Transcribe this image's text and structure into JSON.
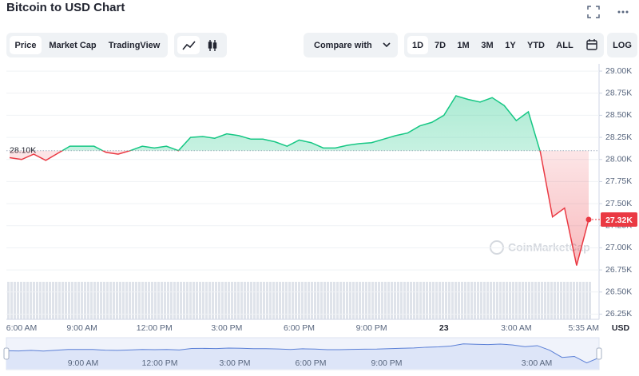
{
  "ui": {
    "tabs": [
      "Price",
      "Market Cap",
      "TradingView"
    ],
    "compare": "Compare with",
    "ranges": [
      "1D",
      "7D",
      "1M",
      "3M",
      "1Y",
      "YTD",
      "ALL"
    ],
    "log": "LOG",
    "currency": "USD",
    "watermark": "CoinMarketCap",
    "navigator_labels": [
      "9:00 AM",
      "12:00 PM",
      "3:00 PM",
      "6:00 PM",
      "9:00 PM",
      "3:00 AM"
    ]
  },
  "chart_data": {
    "type": "line",
    "title": "Bitcoin to USD Chart",
    "categories": [
      "6:00 AM",
      null,
      null,
      null,
      null,
      null,
      "9:00 AM",
      null,
      null,
      null,
      null,
      null,
      "12:00 PM",
      null,
      null,
      null,
      null,
      null,
      "3:00 PM",
      null,
      null,
      null,
      null,
      null,
      "6:00 PM",
      null,
      null,
      null,
      null,
      null,
      "9:00 PM",
      null,
      null,
      null,
      null,
      null,
      "23",
      null,
      null,
      null,
      null,
      null,
      "3:00 AM",
      null,
      null,
      null,
      null,
      null,
      "5:35 AM"
    ],
    "values": [
      28020,
      28000,
      28060,
      27990,
      28070,
      28150,
      28150,
      28150,
      28080,
      28060,
      28100,
      28150,
      28130,
      28150,
      28100,
      28250,
      28260,
      28240,
      28290,
      28270,
      28230,
      28230,
      28200,
      28150,
      28220,
      28190,
      28130,
      28130,
      28160,
      28180,
      28190,
      28230,
      28270,
      28300,
      28380,
      28420,
      28500,
      28720,
      28680,
      28650,
      28700,
      28610,
      28440,
      28540,
      28080,
      27350,
      27450,
      26800,
      27320
    ],
    "value_labels": [
      null,
      null,
      null,
      null,
      null,
      null,
      null,
      null,
      null,
      null,
      null,
      null,
      null,
      null,
      null,
      null,
      null,
      null,
      null,
      null,
      null,
      null,
      null,
      null,
      null,
      null,
      null,
      null,
      null,
      null,
      null,
      null,
      null,
      null,
      null,
      null,
      null,
      null,
      null,
      null,
      null,
      null,
      null,
      null,
      null,
      null,
      null,
      null,
      "27.32K"
    ],
    "baseline": {
      "value": 28100,
      "label": "28.10K"
    },
    "up_color": "#16c784",
    "down_color": "#ea3943",
    "ylim": [
      26200,
      29100
    ],
    "yticks": [
      {
        "value": 29000,
        "label": "29.00K"
      },
      {
        "value": 28750,
        "label": "28.75K"
      },
      {
        "value": 28500,
        "label": "28.50K"
      },
      {
        "value": 28250,
        "label": "28.25K"
      },
      {
        "value": 28000,
        "label": "28.00K"
      },
      {
        "value": 27750,
        "label": "27.75K"
      },
      {
        "value": 27500,
        "label": "27.50K"
      },
      {
        "value": 27250,
        "label": "27.25K"
      },
      {
        "value": 27000,
        "label": "27.00K"
      },
      {
        "value": 26750,
        "label": "26.75K"
      },
      {
        "value": 26500,
        "label": "26.50K"
      },
      {
        "value": 26250,
        "label": "26.25K"
      }
    ],
    "grid": true
  }
}
